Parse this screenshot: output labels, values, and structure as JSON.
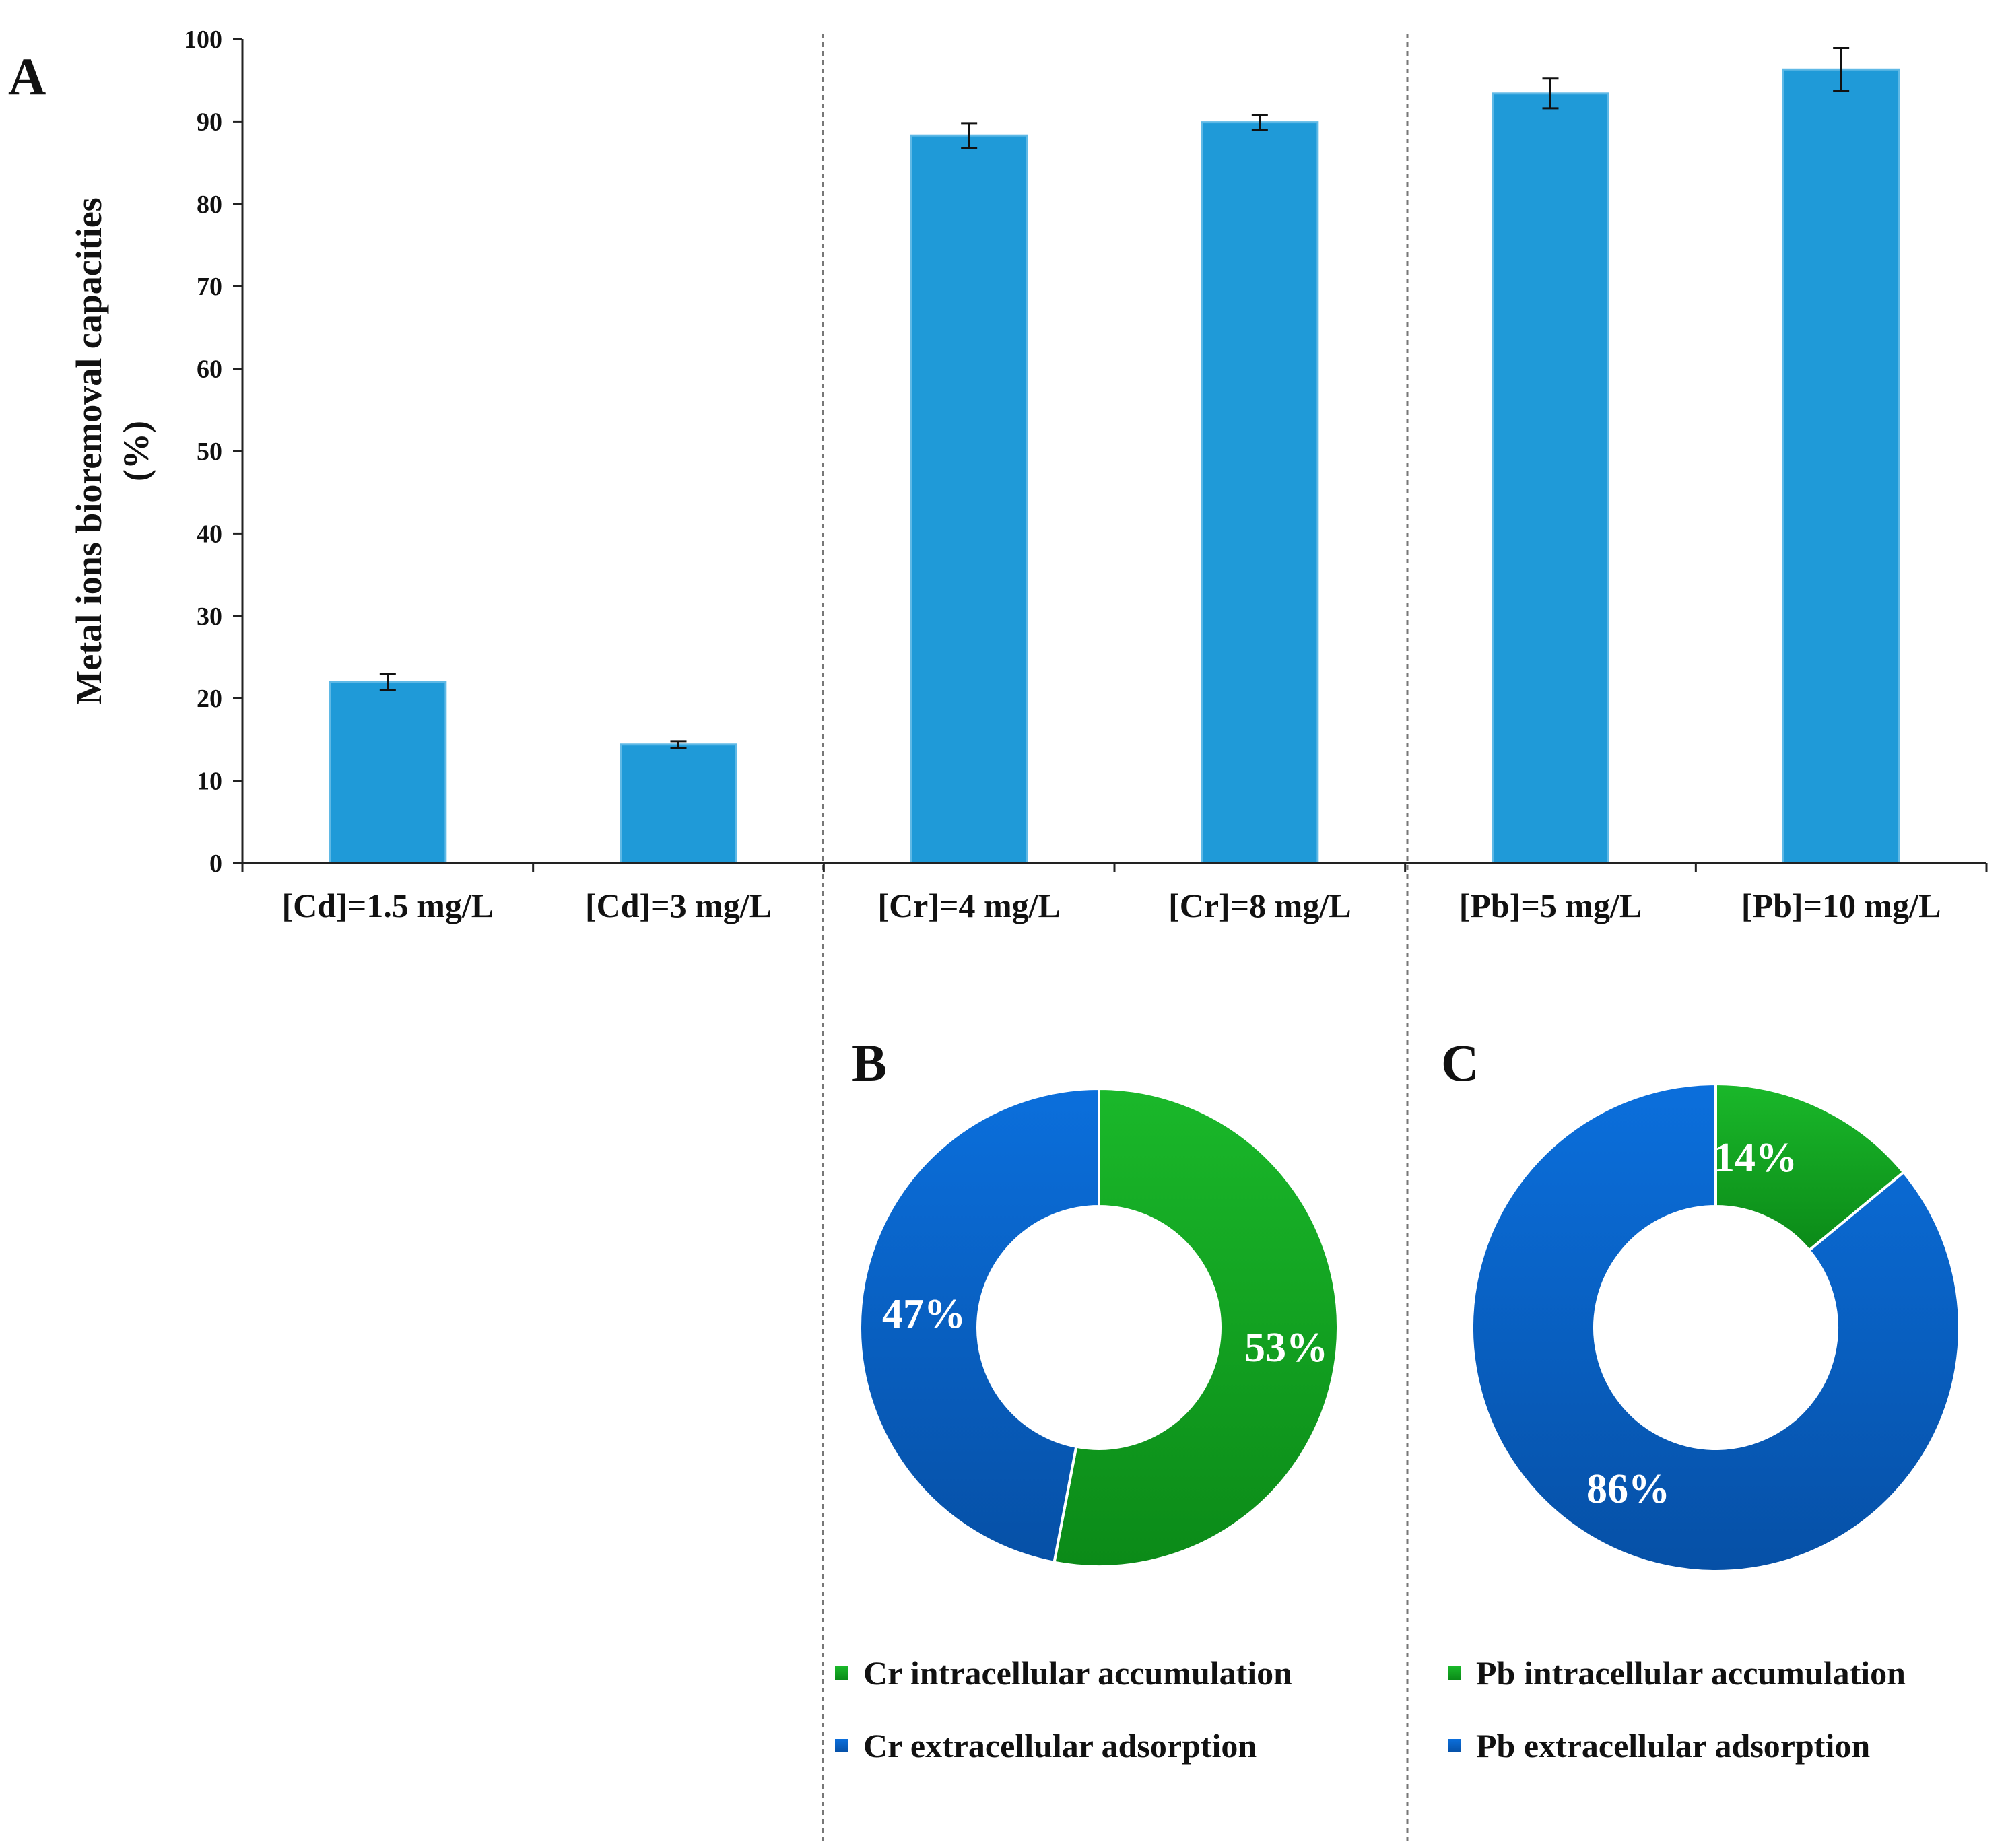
{
  "colors": {
    "bar": "#1f9ad8",
    "bar_edge": "#5fb9e6",
    "green_top": "#1ab82a",
    "green_bottom": "#0b8a18",
    "blue_top": "#0b6fdc",
    "blue_bottom": "#0650a6",
    "axis": "#222222",
    "divider": "#777777"
  },
  "chart_data": [
    {
      "panel": "A",
      "type": "bar",
      "title": "",
      "xlabel": "",
      "ylabel_line1": "Metal ions bioremoval capacities",
      "ylabel_line2": "(%)",
      "ylim": [
        0,
        100
      ],
      "yticks": [
        0,
        10,
        20,
        30,
        40,
        50,
        60,
        70,
        80,
        90,
        100
      ],
      "categories": [
        "[Cd]=1.5 mg/L",
        "[Cd]=3 mg/L",
        "[Cr]=4 mg/L",
        "[Cr]=8 mg/L",
        "[Pb]=5 mg/L",
        "[Pb]=10 mg/L"
      ],
      "values": [
        22,
        14.4,
        88.3,
        89.9,
        93.4,
        96.3
      ],
      "errors": [
        1.0,
        0.4,
        1.5,
        0.9,
        1.8,
        2.6
      ]
    },
    {
      "panel": "B",
      "type": "pie",
      "style": "donut",
      "slices": [
        {
          "label": "Cr intracellular accumulation",
          "value": 53,
          "display": "53%",
          "color": "green"
        },
        {
          "label": "Cr extracellular adsorption",
          "value": 47,
          "display": "47%",
          "color": "blue"
        }
      ]
    },
    {
      "panel": "C",
      "type": "pie",
      "style": "donut",
      "slices": [
        {
          "label": "Pb intracellular accumulation",
          "value": 14,
          "display": "14%",
          "color": "green"
        },
        {
          "label": "Pb extracellular adsorption",
          "value": 86,
          "display": "86%",
          "color": "blue"
        }
      ]
    }
  ]
}
